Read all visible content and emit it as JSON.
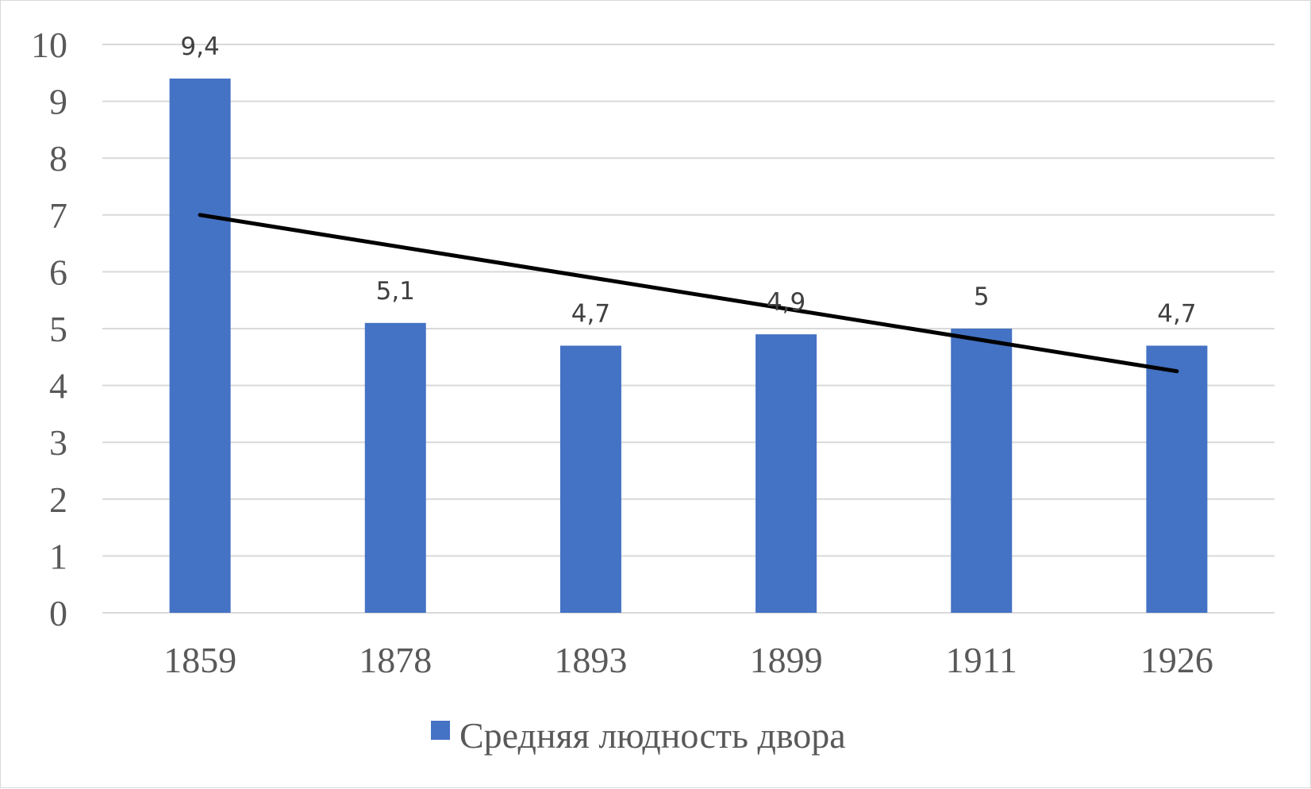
{
  "chart_data": {
    "type": "bar",
    "categories": [
      "1859",
      "1878",
      "1893",
      "1899",
      "1911",
      "1926"
    ],
    "series": [
      {
        "name": "Средняя людность двора",
        "values": [
          9.4,
          5.1,
          4.7,
          4.9,
          5,
          4.7
        ],
        "data_labels": [
          "9,4",
          "5,1",
          "4,7",
          "4,9",
          "5",
          "4,7"
        ],
        "color": "#4472C4"
      }
    ],
    "trendline": {
      "type": "linear",
      "from": 7.0,
      "to": 4.25,
      "color": "#000000"
    },
    "title": "",
    "xlabel": "",
    "ylabel": "",
    "ylim": [
      0,
      10
    ],
    "yticks": [
      "0",
      "1",
      "2",
      "3",
      "4",
      "5",
      "6",
      "7",
      "8",
      "9",
      "10"
    ],
    "grid": true,
    "gridline_color": "#d9d9d9",
    "legend_position": "bottom"
  }
}
